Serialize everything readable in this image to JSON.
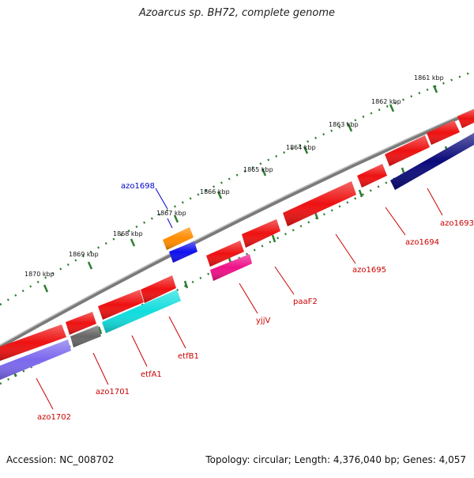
{
  "title": "Azoarcus sp. BH72, complete genome",
  "accession": "Accession: NC_008702",
  "summary": "Topology: circular; Length: 4,376,040 bp; Genes: 4,057",
  "colors": {
    "backbone": "#808080",
    "scale": "#2e7d32",
    "red": "#ee1111",
    "gray": "#666666",
    "cyan": "#11dddd",
    "lavender": "#7b68ee",
    "navy": "#0a0a7a",
    "magenta": "#ee1188",
    "orange": "#ff8c00",
    "blue": "#1010ee",
    "label_red": "#cc0000",
    "label_blue": "#0000cc"
  },
  "kbp_marks": [
    "1861 kbp",
    "1862 kbp",
    "1863 kbp",
    "1864 kbp",
    "1865 kbp",
    "1866 kbp",
    "1867 kbp",
    "1868 kbp",
    "1869 kbp",
    "1870 kbp"
  ],
  "gene_labels": {
    "azo1693": "azo1693",
    "azo1694": "azo1694",
    "azo1695": "azo1695",
    "paaF2": "paaF2",
    "yjjV": "yjjV",
    "etfB1": "etfB1",
    "etfA1": "etfA1",
    "azo1701": "azo1701",
    "azo1702": "azo1702",
    "azo1698": "azo1698"
  }
}
